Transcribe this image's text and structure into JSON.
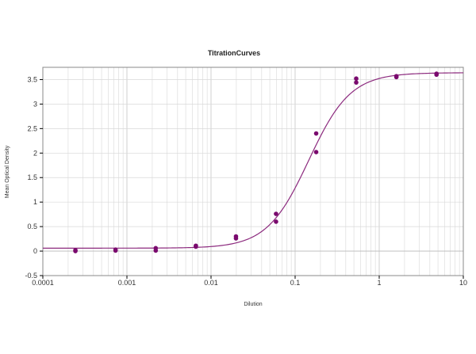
{
  "chart_data": {
    "type": "scatter",
    "title": "TitrationCurves",
    "xlabel": "Dilution",
    "ylabel": "Mean Optical Density",
    "x_scale": "log",
    "xlim": [
      0.0001,
      10
    ],
    "ylim": [
      -0.5,
      3.75
    ],
    "x_ticks": [
      0.0001,
      0.001,
      0.01,
      0.1,
      1,
      10
    ],
    "x_tick_labels": [
      "0.0001",
      "0.001",
      "0.01",
      "0.1",
      "1",
      "10"
    ],
    "y_ticks": [
      -0.5,
      0,
      0.5,
      1,
      1.5,
      2,
      2.5,
      3,
      3.5
    ],
    "y_tick_labels": [
      "-0.5",
      "0",
      "0.5",
      "1",
      "1.5",
      "2",
      "2.5",
      "3",
      "3.5"
    ],
    "grid": true,
    "legend": "none",
    "colors": {
      "points": "#7a0a6e",
      "curve": "#8c2a7e",
      "grid": "#d8d8d8",
      "axis": "#000000"
    },
    "series": [
      {
        "kind": "points",
        "points": [
          {
            "x": 0.000244,
            "y": 0.0
          },
          {
            "x": 0.000244,
            "y": 0.02
          },
          {
            "x": 0.000732,
            "y": 0.01
          },
          {
            "x": 0.000732,
            "y": 0.03
          },
          {
            "x": 0.0022,
            "y": 0.01
          },
          {
            "x": 0.0022,
            "y": 0.06
          },
          {
            "x": 0.0066,
            "y": 0.09
          },
          {
            "x": 0.0066,
            "y": 0.11
          },
          {
            "x": 0.0198,
            "y": 0.26
          },
          {
            "x": 0.0198,
            "y": 0.3
          },
          {
            "x": 0.0593,
            "y": 0.6
          },
          {
            "x": 0.0593,
            "y": 0.76
          },
          {
            "x": 0.178,
            "y": 2.02
          },
          {
            "x": 0.178,
            "y": 2.4
          },
          {
            "x": 0.533,
            "y": 3.44
          },
          {
            "x": 0.533,
            "y": 3.52
          },
          {
            "x": 1.6,
            "y": 3.55
          },
          {
            "x": 1.6,
            "y": 3.57
          },
          {
            "x": 4.8,
            "y": 3.6
          },
          {
            "x": 4.8,
            "y": 3.62
          }
        ]
      },
      {
        "kind": "fit-curve",
        "model": "4PL",
        "params": {
          "bottom": 0.06,
          "top": 3.64,
          "ec50": 0.145,
          "hill": 1.75
        }
      }
    ]
  }
}
